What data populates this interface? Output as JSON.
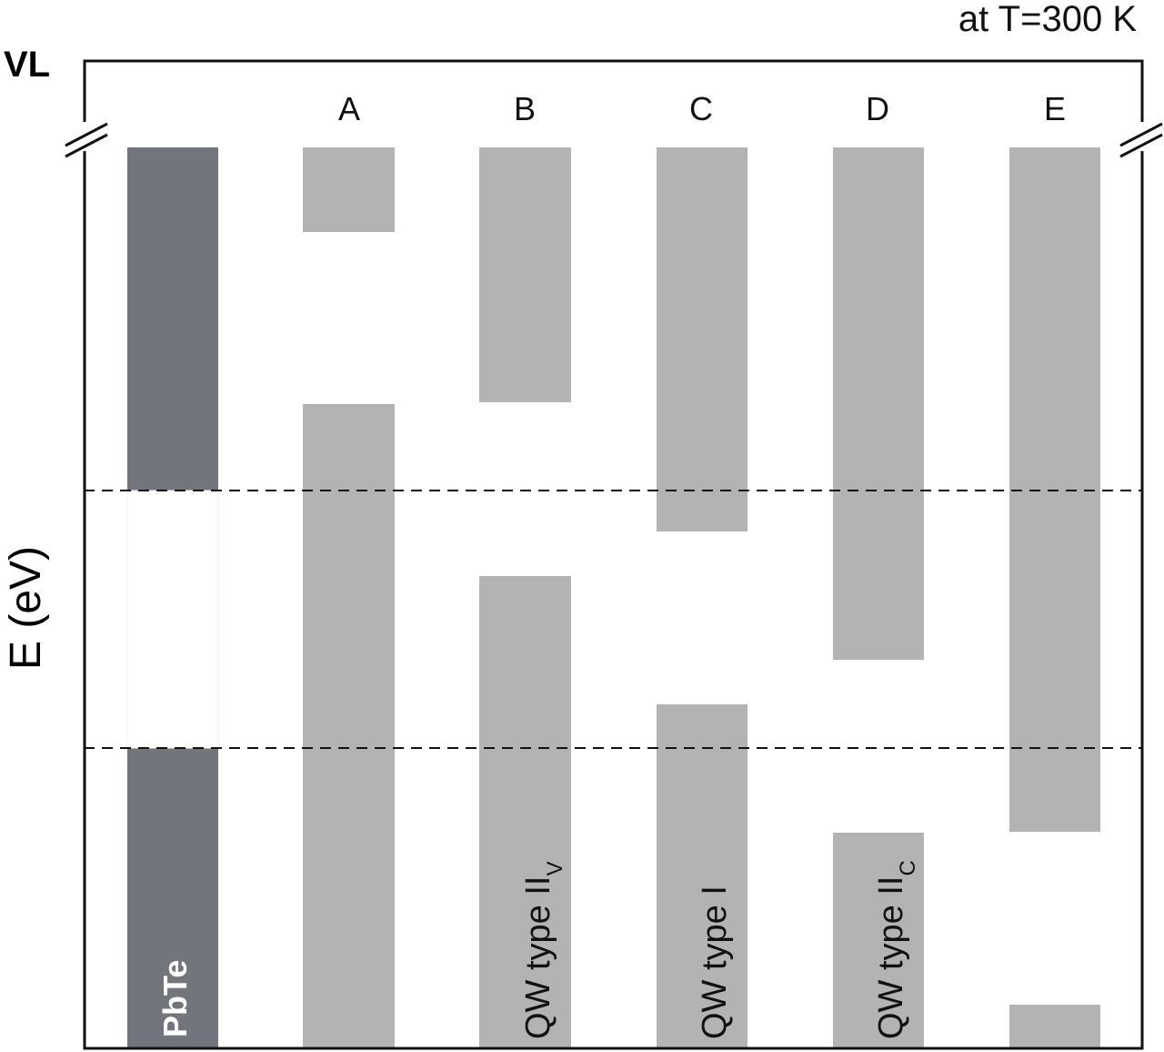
{
  "temperature_label": "at T=300 K",
  "vl_label": "VL",
  "y_axis_label": "E (eV)",
  "colors": {
    "pbte": "#73757d",
    "barrier": "#b3b3b3",
    "frame": "#111111",
    "dashed": "#111111"
  },
  "pbte": {
    "label": "PbTe"
  },
  "columns": [
    {
      "name": "A",
      "bar_label": "",
      "bar_label_sub": ""
    },
    {
      "name": "B",
      "bar_label": "QW type II",
      "bar_label_sub": "V"
    },
    {
      "name": "C",
      "bar_label": "QW type I",
      "bar_label_sub": ""
    },
    {
      "name": "D",
      "bar_label": "QW type II",
      "bar_label_sub": "C"
    },
    {
      "name": "E",
      "bar_label": "",
      "bar_label_sub": ""
    }
  ]
}
